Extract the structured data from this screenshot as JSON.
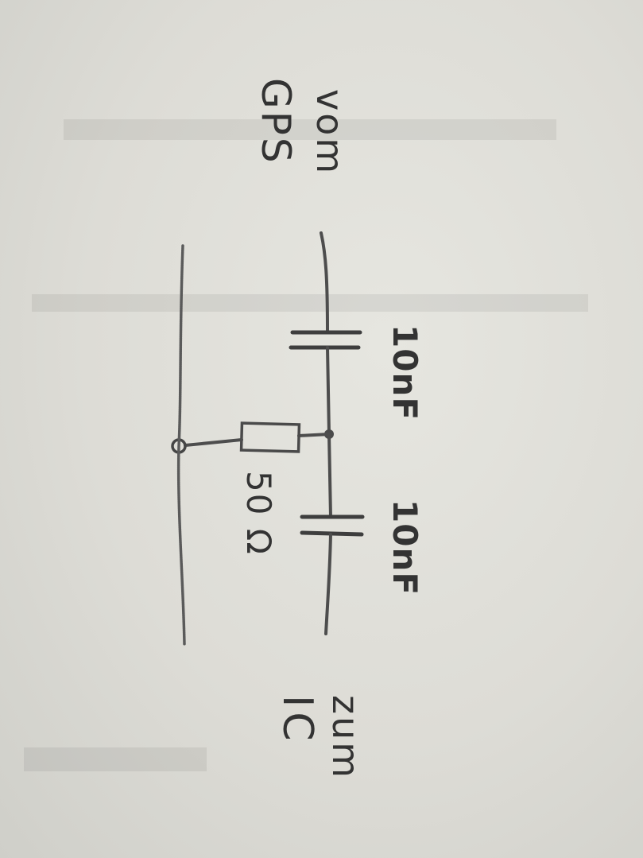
{
  "diagram": {
    "source_label": {
      "line1": "vom",
      "line2": "GPS"
    },
    "target_label": {
      "line1": "zum",
      "line2": "IC"
    },
    "capacitor_1": {
      "value": "10nF"
    },
    "capacitor_2": {
      "value": "10nF"
    },
    "resistor": {
      "value": "50 Ω"
    }
  },
  "colors": {
    "paper": "#dddcd6",
    "pencil": "#4a4a4a"
  }
}
